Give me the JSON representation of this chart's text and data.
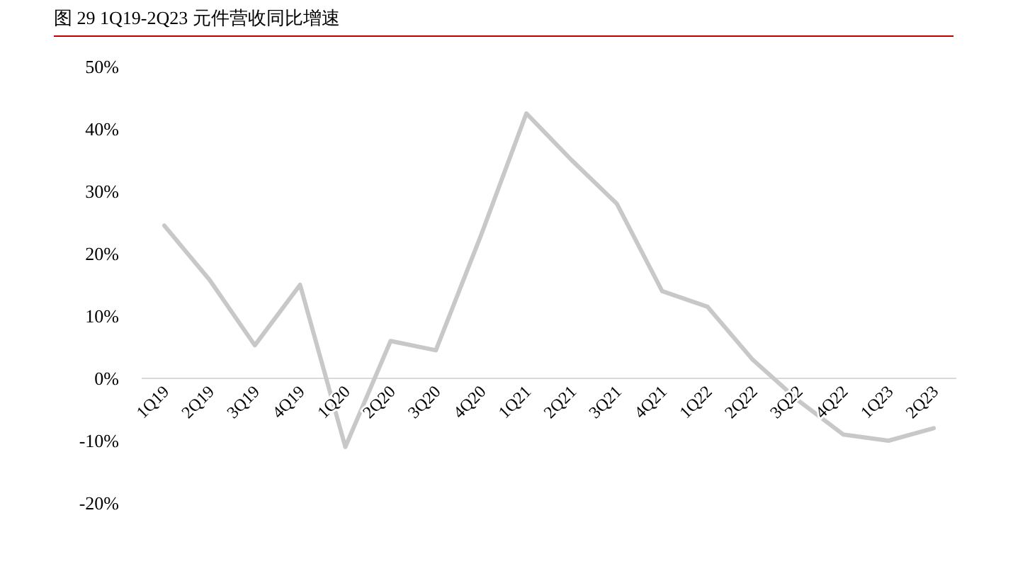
{
  "chart_data": {
    "type": "line",
    "title": "图 29 1Q19-2Q23 元件营收同比增速",
    "categories": [
      "1Q19",
      "2Q19",
      "3Q19",
      "4Q19",
      "1Q20",
      "2Q20",
      "3Q20",
      "4Q20",
      "1Q21",
      "2Q21",
      "3Q21",
      "4Q21",
      "1Q22",
      "2Q22",
      "3Q22",
      "4Q22",
      "1Q23",
      "2Q23"
    ],
    "series": [
      {
        "color": "#c8c8c8",
        "values": [
          24.5,
          15.8,
          5.3,
          15,
          -11,
          6,
          4.5,
          23,
          42.5,
          35,
          28,
          14,
          11.5,
          3,
          -3.5,
          -9,
          -10,
          -8
        ]
      }
    ],
    "ylim": [
      -20,
      50
    ],
    "yticks": [
      {
        "value": -20,
        "label": "-20%"
      },
      {
        "value": -10,
        "label": "-10%"
      },
      {
        "value": 0,
        "label": "0%"
      },
      {
        "value": 10,
        "label": "10%"
      },
      {
        "value": 20,
        "label": "20%"
      },
      {
        "value": 30,
        "label": "30%"
      },
      {
        "value": 40,
        "label": "40%"
      },
      {
        "value": 50,
        "label": "50%"
      }
    ],
    "line_style": "solid"
  }
}
